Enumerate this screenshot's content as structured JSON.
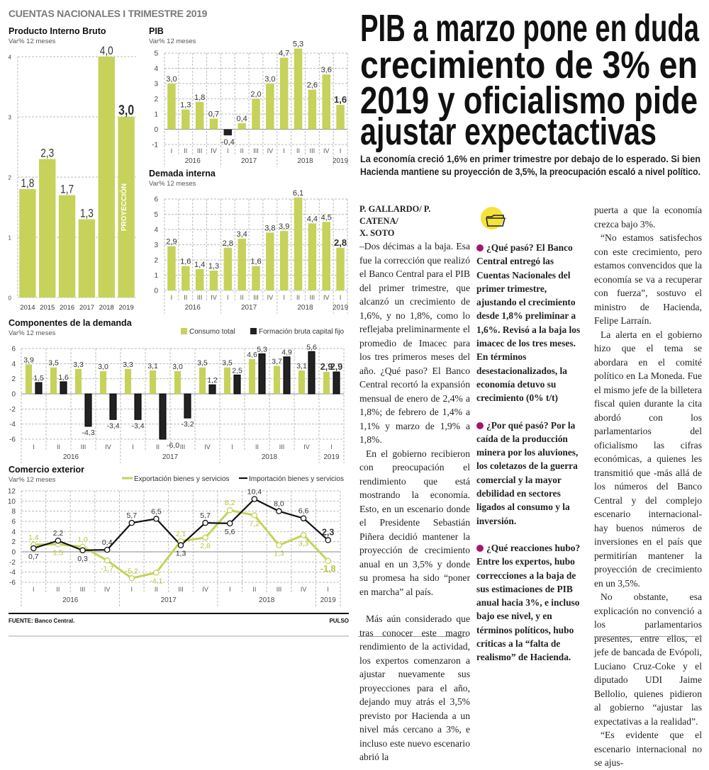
{
  "section_label": "CUENTAS NACIONALES I TRIMESTRE 2019",
  "headline_lines": [
    "PIB a marzo pone en duda",
    "crecimiento de 3% en",
    "2019 y oficialismo pide",
    "ajustar expectactivas"
  ],
  "deck_lines": [
    "La economía creció 1,6% en primer trimestre por debajo de lo esperado. Si bien",
    "Hacienda mantiene su proyección de 3,5%, la preocupación escaló a nivel político."
  ],
  "byline": [
    "P. GALLARDO/ P. CATENA/",
    "X. SOTO"
  ],
  "column1": [
    "–Dos décimas a la baja. Esa fue la corrección que realizó el Banco Central para el PIB del primer trimestre, que alcanzó un crecimiento de 1,6%, y no 1,8%, como lo reflejaba preliminarmente el promedio de Imacec para los tres primeros meses del año. ¿Qué paso? El Banco Central recortó la expansión mensual de enero de 2,4% a 1,8%; de febrero de 1,4% a 1,1% y marzo de 1,9% a 1,8%.",
    "En el gobierno recibieron con preocupación el rendimiento que está mostrando la economía. Esto, en un escenario donde el Presidente Sebastián Piñera decidió mantener la proyección de crecimiento anual en un 3,5% y donde su promesa ha sido “poner en marcha” al país.",
    "Más aún considerado que tras conocer este magro rendimiento de la actividad, los expertos comenzaron a ajustar nuevamente sus proyecciones para el año, dejando muy atrás el 3,5% previsto por Hacienda a un nivel más cercano a 3%, e incluso este nuevo escenario abrió la"
  ],
  "column2": [
    {
      "lead": "¿Qué pasó?",
      "text": "El Banco Central entregó las Cuentas Nacionales del primer trimestre, ajustando el crecimiento desde 1,8% preliminar a 1,6%. Revisó a la baja los imacec de los tres meses. En términos desestacionalizados, la economía detuvo su crecimiento (0% t/t)"
    },
    {
      "lead": "¿Por qué pasó?",
      "text": "Por la caída de la producción minera por los aluviones, los coletazos de la guerra comercial y la mayor debilidad en sectores ligados al consumo y la inversión."
    },
    {
      "lead": "¿Qué reacciones hubo?",
      "text": "Entre los expertos, hubo correcciones a la baja de sus estimaciones de PIB anual hacia 3%, e incluso bajo ese nivel, y en términos políticos, hubo críticas a la “falta de realismo” de Hacienda."
    }
  ],
  "column3": [
    "puerta a que la economía crezca bajo 3%.",
    "“No estamos satisfechos con este crecimiento, pero estamos convencidos que la economía se va a recuperar con fuerza”, sostuvo el ministro de Hacienda, Felipe Larraín.",
    "La alerta en el gobierno hizo que el tema se abordara en el comité político en La Moneda. Fue el mismo jefe de la billetera fiscal quien durante la cita abordó con los parlamentarios del oficialismo las cifras económicas, a quienes les transmitió que -más allá de los números del Banco Central y del complejo escenario internacional- hay buenos números de inversiones en el país que permitirían mantener la proyección de crecimiento en un 3,5%.",
    "No obstante, esa explicación no convenció a los parlamentarios presentes, entre ellos, el jefe de bancada de Evópoli, Luciano Cruz-Coke y el diputado UDI Jaime Bellolio, quienes pidieron al gobierno “ajustar las expectativas a la realidad”.",
    "“Es evidente que el escenario internacional no se ajus-"
  ],
  "footer": {
    "source": "FUENTE: Banco Central.",
    "brand": "PULSO"
  },
  "colors": {
    "green": "#c6d25a",
    "dark": "#222222",
    "accent_dot": "#a8156e",
    "folder_yellow": "#f3e33a"
  },
  "quarters": [
    "I",
    "II",
    "III",
    "IV",
    "I",
    "II",
    "III",
    "IV",
    "I",
    "II",
    "III",
    "IV",
    "I"
  ],
  "year_groups": [
    {
      "label": "2016",
      "count": 4
    },
    {
      "label": "2017",
      "count": 4
    },
    {
      "label": "2018",
      "count": 4
    },
    {
      "label": "2019",
      "count": 1
    }
  ],
  "chart_data": [
    {
      "type": "bar",
      "title": "Producto Interno Bruto",
      "subtitle": "Var% 12 meses",
      "categories": [
        "2014",
        "2015",
        "2016",
        "2017",
        "2018",
        "2019"
      ],
      "values": [
        1.8,
        2.3,
        1.7,
        1.3,
        4.0,
        3.0
      ],
      "annotation": "PROYECCIÓN",
      "ylim": [
        0,
        4
      ],
      "yticks": [
        0,
        1,
        2,
        3,
        4
      ]
    },
    {
      "type": "bar",
      "title": "PIB",
      "subtitle": "Var% 12 meses",
      "values": [
        3.0,
        1.3,
        1.8,
        0.7,
        -0.4,
        0.4,
        2.0,
        3.0,
        4.7,
        5.3,
        2.6,
        3.6,
        1.6
      ],
      "ylim": [
        -1,
        5
      ],
      "yticks": [
        -1,
        0,
        1,
        2,
        3,
        4,
        5
      ]
    },
    {
      "type": "bar",
      "title": "Demada interna",
      "subtitle": "Var% 12 meses",
      "values": [
        2.9,
        1.6,
        1.4,
        1.3,
        2.8,
        3.4,
        1.6,
        3.8,
        3.9,
        6.1,
        4.4,
        4.5,
        2.8
      ],
      "ylim": [
        0,
        6
      ],
      "yticks": [
        0,
        1,
        2,
        3,
        4,
        5,
        6
      ]
    },
    {
      "type": "bar",
      "title": "Componentes de la demanda",
      "subtitle": "Var% 12 meses",
      "series": [
        {
          "name": "Consumo total",
          "values": [
            3.9,
            3.5,
            3.3,
            3.0,
            3.3,
            3.1,
            3.0,
            3.5,
            3.5,
            4.6,
            3.7,
            3.1,
            2.9
          ]
        },
        {
          "name": "Formación bruta capital fijo",
          "values": [
            1.5,
            1.6,
            -4.3,
            -3.4,
            -3.4,
            -6.0,
            -3.2,
            1.2,
            2.5,
            5.3,
            4.9,
            5.6,
            2.9
          ]
        }
      ],
      "ylim": [
        -6,
        6
      ],
      "yticks": [
        -6,
        -4,
        -2,
        0,
        2,
        4,
        6
      ],
      "legend": "top-right"
    },
    {
      "type": "line",
      "title": "Comercio exterior",
      "subtitle": "Var% 12 meses",
      "series": [
        {
          "name": "Exportación bienes y servicios",
          "values": [
            1.4,
            1.5,
            1.0,
            -1.7,
            -5.2,
            -4.1,
            2.1,
            2.8,
            8.2,
            7.2,
            1.3,
            3.3,
            -1.8
          ]
        },
        {
          "name": "Importación bienes y servicios",
          "values": [
            0.7,
            2.2,
            0.3,
            0.4,
            5.7,
            6.5,
            1.3,
            5.7,
            5.6,
            10.4,
            8.0,
            6.6,
            2.3
          ]
        }
      ],
      "ylim": [
        -6,
        12
      ],
      "yticks": [
        -6,
        -4,
        -2,
        0,
        2,
        4,
        6,
        8,
        10,
        12
      ],
      "legend": "top-right"
    }
  ]
}
